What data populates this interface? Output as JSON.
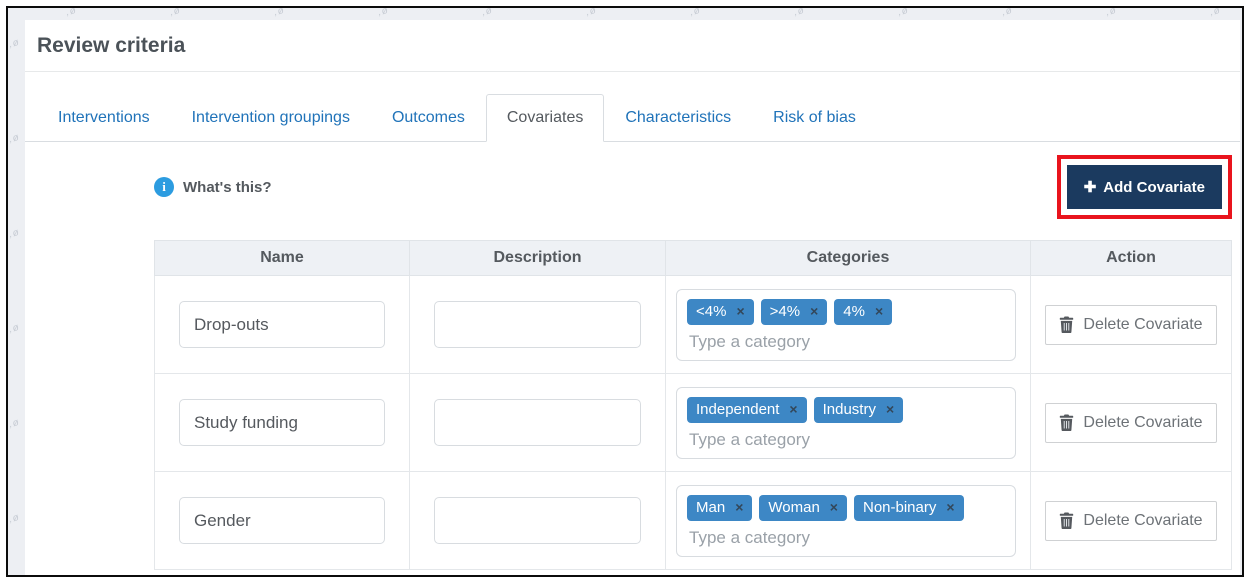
{
  "page": {
    "title": "Review criteria"
  },
  "tabs": [
    {
      "label": "Interventions",
      "active": false
    },
    {
      "label": "Intervention groupings",
      "active": false
    },
    {
      "label": "Outcomes",
      "active": false
    },
    {
      "label": "Covariates",
      "active": true
    },
    {
      "label": "Characteristics",
      "active": false
    },
    {
      "label": "Risk of bias",
      "active": false
    }
  ],
  "info": {
    "label": "What's this?",
    "icon": "info-circle"
  },
  "toolbar": {
    "add_label": "Add Covariate",
    "plus_glyph": "✚"
  },
  "table": {
    "headers": [
      "Name",
      "Description",
      "Categories",
      "Action"
    ],
    "category_placeholder": "Type a category",
    "delete_label": "Delete Covariate",
    "tag_close_glyph": "×",
    "rows": [
      {
        "name": "Drop-outs",
        "description": "",
        "categories": [
          "<4%",
          ">4%",
          "4%"
        ]
      },
      {
        "name": "Study funding",
        "description": "",
        "categories": [
          "Independent",
          "Industry"
        ]
      },
      {
        "name": "Gender",
        "description": "",
        "categories": [
          "Man",
          "Woman",
          "Non-binary"
        ]
      }
    ]
  },
  "colors": {
    "accent_navy": "#1b3a5f",
    "annotation_red": "#e9141d",
    "tab_blue": "#2073b9",
    "tag_blue": "#3d87c5",
    "info_blue": "#2c9ce0",
    "header_bg": "#eef1f5"
  },
  "decor": {
    "watermark_glyph": ",ø"
  }
}
